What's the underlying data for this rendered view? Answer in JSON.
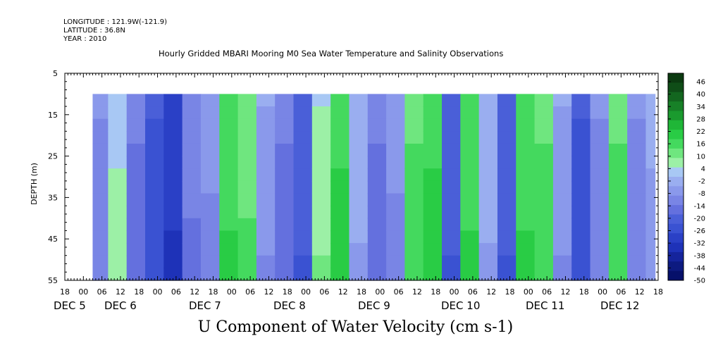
{
  "header": {
    "longitude": "LONGITUDE : 121.9W(-121.9)",
    "latitude": "LATITUDE : 36.8N",
    "year": "YEAR : 2010",
    "title": "Hourly Gridded MBARI Mooring M0 Sea Water Temperature and Salinity Observations"
  },
  "chart_data": {
    "type": "heatmap",
    "title": "Hourly Gridded MBARI Mooring M0 Sea Water Temperature and Salinity Observations",
    "xlabel": "U Component of Water Velocity (cm s-1)",
    "ylabel": "DEPTH (m)",
    "y_ticks": [
      5,
      15,
      25,
      35,
      45,
      55
    ],
    "ylim": [
      55,
      5
    ],
    "y_reversed": true,
    "data_depth_range": [
      10,
      55
    ],
    "x_hour_labels": [
      "18",
      "00",
      "06",
      "12",
      "18",
      "00",
      "06",
      "12",
      "18",
      "00",
      "06",
      "12",
      "18",
      "00",
      "06",
      "12",
      "18",
      "00",
      "06",
      "12",
      "18",
      "00",
      "06",
      "12",
      "18",
      "00",
      "06",
      "12",
      "18",
      "00",
      "06",
      "12",
      "18"
    ],
    "x_start": "Dec 4 18:00",
    "x_end": "Dec 12 18:00",
    "day_labels": [
      {
        "text": "DEC  5",
        "date": "Dec 5"
      },
      {
        "text": "DEC  6",
        "date": "Dec 6"
      },
      {
        "text": "DEC  7",
        "date": "Dec 7"
      },
      {
        "text": "DEC  8",
        "date": "Dec 8"
      },
      {
        "text": "DEC  9",
        "date": "Dec 9"
      },
      {
        "text": "DEC 10",
        "date": "Dec 10"
      },
      {
        "text": "DEC 11",
        "date": "Dec 11"
      },
      {
        "text": "DEC 12",
        "date": "Dec 12"
      }
    ],
    "colorbar_labels": [
      "46",
      "40",
      "34",
      "28",
      "22",
      "16",
      "10",
      "4",
      "-2",
      "-8",
      "-14",
      "-20",
      "-26",
      "-32",
      "-38",
      "-44",
      "-50"
    ],
    "colorbar_range": [
      -50,
      52
    ],
    "colorbar_colors": [
      "#0b3a10",
      "#0f4d17",
      "#13661f",
      "#178027",
      "#1a9a2e",
      "#1fb637",
      "#29cc45",
      "#44d95e",
      "#6fe67f",
      "#9cf0a6",
      "#a8c8f4",
      "#9aaef0",
      "#8a99eb",
      "#7985e5",
      "#6470de",
      "#4a5fd8",
      "#3a52d2",
      "#2a40c6",
      "#1e32b8",
      "#15249c",
      "#0d1a80",
      "#06106a"
    ],
    "profile_hours": [
      0,
      8,
      14,
      20,
      26,
      32,
      38,
      44,
      50,
      56,
      62,
      68,
      74,
      80,
      86,
      92,
      98,
      104,
      110,
      116,
      122,
      128,
      134,
      140,
      146,
      152,
      158,
      164,
      170,
      176,
      182,
      188
    ],
    "profile_values": [
      -8,
      -10,
      6,
      -14,
      -24,
      -30,
      -12,
      -8,
      18,
      14,
      -6,
      -14,
      -20,
      8,
      20,
      -2,
      -14,
      -8,
      16,
      20,
      -20,
      18,
      -2,
      -20,
      18,
      16,
      -6,
      -24,
      -10,
      16,
      -10,
      -4
    ]
  }
}
